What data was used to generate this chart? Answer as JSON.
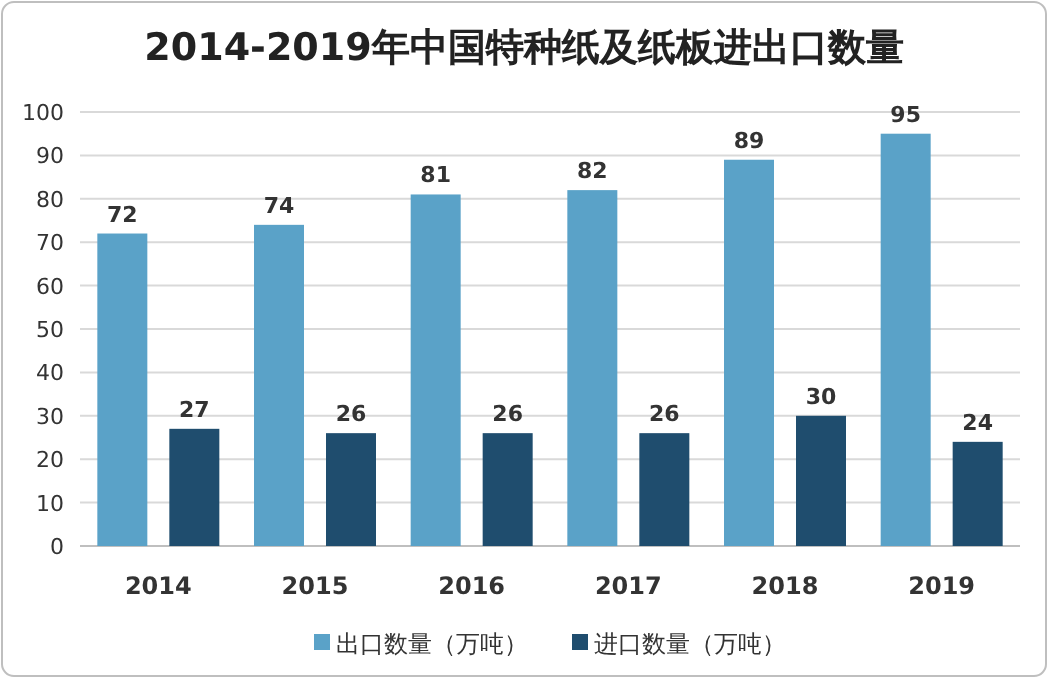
{
  "chart_data": {
    "type": "bar",
    "title": "2014-2019年中国特种纸及纸板进出口数量",
    "categories": [
      "2014",
      "2015",
      "2016",
      "2017",
      "2018",
      "2019"
    ],
    "series": [
      {
        "name": "出口数量（万吨）",
        "color": "#5aa2c8",
        "values": [
          72,
          74,
          81,
          82,
          89,
          95
        ]
      },
      {
        "name": "进口数量（万吨）",
        "color": "#1f4d6e",
        "values": [
          27,
          26,
          26,
          26,
          30,
          24
        ]
      }
    ],
    "ylim": [
      0,
      100
    ],
    "yticks": [
      0,
      10,
      20,
      30,
      40,
      50,
      60,
      70,
      80,
      90,
      100
    ],
    "grid": "y",
    "legend": "bottom",
    "data_labels": true
  }
}
